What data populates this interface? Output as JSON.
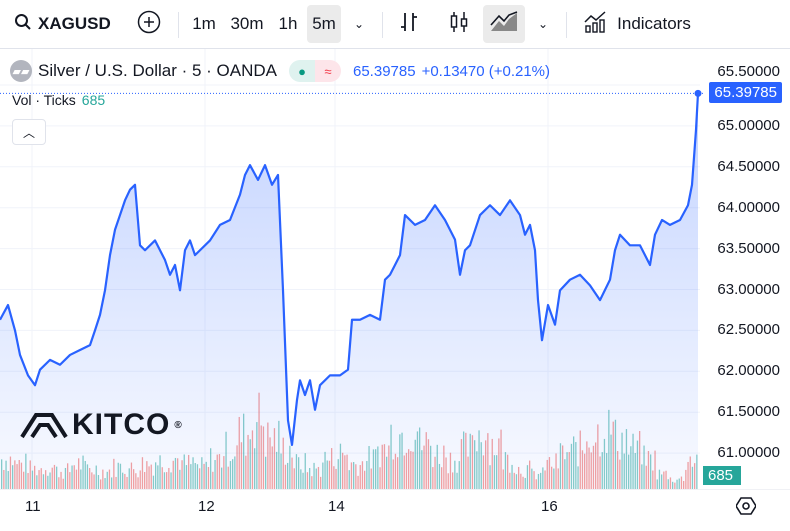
{
  "toolbar": {
    "symbol": "XAGUSD",
    "intervals": [
      "1m",
      "30m",
      "1h",
      "5m"
    ],
    "active_interval": "5m",
    "indicators_label": "Indicators"
  },
  "legend": {
    "title": "Silver / U.S. Dollar · 5 · OANDA",
    "price": "65.39785",
    "change": "+0.13470 (+0.21%)"
  },
  "volume": {
    "label": "Vol · Ticks",
    "value": "685"
  },
  "logo": "KITCO",
  "colors": {
    "line": "#2962ff",
    "up": "#26a69a",
    "down": "#ef5350"
  },
  "chart_data": {
    "type": "area",
    "price_axis": {
      "ticks": [
        "65.50000",
        "65.00000",
        "64.50000",
        "64.00000",
        "63.50000",
        "63.00000",
        "62.50000",
        "62.00000",
        "61.50000",
        "61.00000"
      ],
      "range": [
        60.8,
        65.55
      ]
    },
    "x_ticks": [
      {
        "label": "11",
        "bar": 32
      },
      {
        "label": "12",
        "bar": 205
      },
      {
        "label": "14",
        "bar": 335
      },
      {
        "label": "16",
        "bar": 548
      }
    ],
    "last_price": "65.39785",
    "last_volume": "685",
    "series": [
      [
        0,
        62.63
      ],
      [
        8,
        62.81
      ],
      [
        15,
        62.5
      ],
      [
        20,
        62.2
      ],
      [
        28,
        61.95
      ],
      [
        35,
        61.83
      ],
      [
        40,
        62.02
      ],
      [
        50,
        62.14
      ],
      [
        60,
        62.08
      ],
      [
        70,
        62.2
      ],
      [
        80,
        62.26
      ],
      [
        90,
        62.32
      ],
      [
        95,
        62.5
      ],
      [
        100,
        62.69
      ],
      [
        105,
        62.99
      ],
      [
        110,
        63.42
      ],
      [
        115,
        63.73
      ],
      [
        120,
        63.91
      ],
      [
        125,
        64.09
      ],
      [
        130,
        64.22
      ],
      [
        135,
        64.28
      ],
      [
        140,
        63.54
      ],
      [
        145,
        63.48
      ],
      [
        155,
        63.6
      ],
      [
        165,
        63.36
      ],
      [
        170,
        63.18
      ],
      [
        175,
        63.3
      ],
      [
        180,
        62.99
      ],
      [
        185,
        63.48
      ],
      [
        190,
        63.6
      ],
      [
        195,
        63.42
      ],
      [
        200,
        63.48
      ],
      [
        210,
        63.6
      ],
      [
        220,
        63.79
      ],
      [
        230,
        63.85
      ],
      [
        240,
        64.16
      ],
      [
        245,
        64.4
      ],
      [
        250,
        64.52
      ],
      [
        258,
        64.34
      ],
      [
        265,
        64.52
      ],
      [
        272,
        64.28
      ],
      [
        278,
        64.4
      ],
      [
        283,
        62.99
      ],
      [
        288,
        61.4
      ],
      [
        292,
        61.1
      ],
      [
        297,
        61.65
      ],
      [
        300,
        61.89
      ],
      [
        305,
        61.71
      ],
      [
        310,
        61.89
      ],
      [
        315,
        61.53
      ],
      [
        320,
        61.83
      ],
      [
        330,
        61.95
      ],
      [
        340,
        61.95
      ],
      [
        348,
        62.02
      ],
      [
        352,
        62.63
      ],
      [
        360,
        62.63
      ],
      [
        370,
        62.69
      ],
      [
        380,
        62.63
      ],
      [
        385,
        63.12
      ],
      [
        390,
        63.18
      ],
      [
        395,
        63.3
      ],
      [
        400,
        63.42
      ],
      [
        405,
        63.91
      ],
      [
        415,
        63.79
      ],
      [
        425,
        63.85
      ],
      [
        435,
        64.03
      ],
      [
        445,
        63.85
      ],
      [
        455,
        63.61
      ],
      [
        460,
        63.18
      ],
      [
        465,
        63.48
      ],
      [
        470,
        63.54
      ],
      [
        480,
        63.91
      ],
      [
        490,
        64.03
      ],
      [
        500,
        63.91
      ],
      [
        510,
        64.09
      ],
      [
        520,
        63.91
      ],
      [
        525,
        63.67
      ],
      [
        530,
        63.79
      ],
      [
        535,
        63.48
      ],
      [
        538,
        62.87
      ],
      [
        542,
        62.38
      ],
      [
        548,
        62.81
      ],
      [
        555,
        62.57
      ],
      [
        560,
        62.99
      ],
      [
        570,
        63.12
      ],
      [
        580,
        63.18
      ],
      [
        590,
        63.05
      ],
      [
        600,
        62.87
      ],
      [
        610,
        63.12
      ],
      [
        615,
        63.48
      ],
      [
        620,
        63.67
      ],
      [
        630,
        63.54
      ],
      [
        640,
        63.54
      ],
      [
        650,
        63.3
      ],
      [
        655,
        63.67
      ],
      [
        662,
        63.85
      ],
      [
        670,
        63.79
      ],
      [
        680,
        63.85
      ],
      [
        688,
        64.03
      ],
      [
        692,
        64.28
      ],
      [
        696,
        64.95
      ],
      [
        698,
        65.39785
      ]
    ],
    "volume_profile": [
      30,
      25,
      20,
      22,
      18,
      25,
      20,
      18,
      22,
      20,
      25,
      28,
      30,
      25,
      22,
      30,
      40,
      55,
      70,
      50,
      40,
      25,
      20,
      30,
      35,
      25,
      30,
      40,
      55,
      60,
      45,
      35,
      30,
      40,
      55,
      45,
      30,
      20,
      15,
      25,
      35,
      40,
      55,
      60,
      50,
      40,
      30,
      15,
      10,
      30
    ]
  }
}
